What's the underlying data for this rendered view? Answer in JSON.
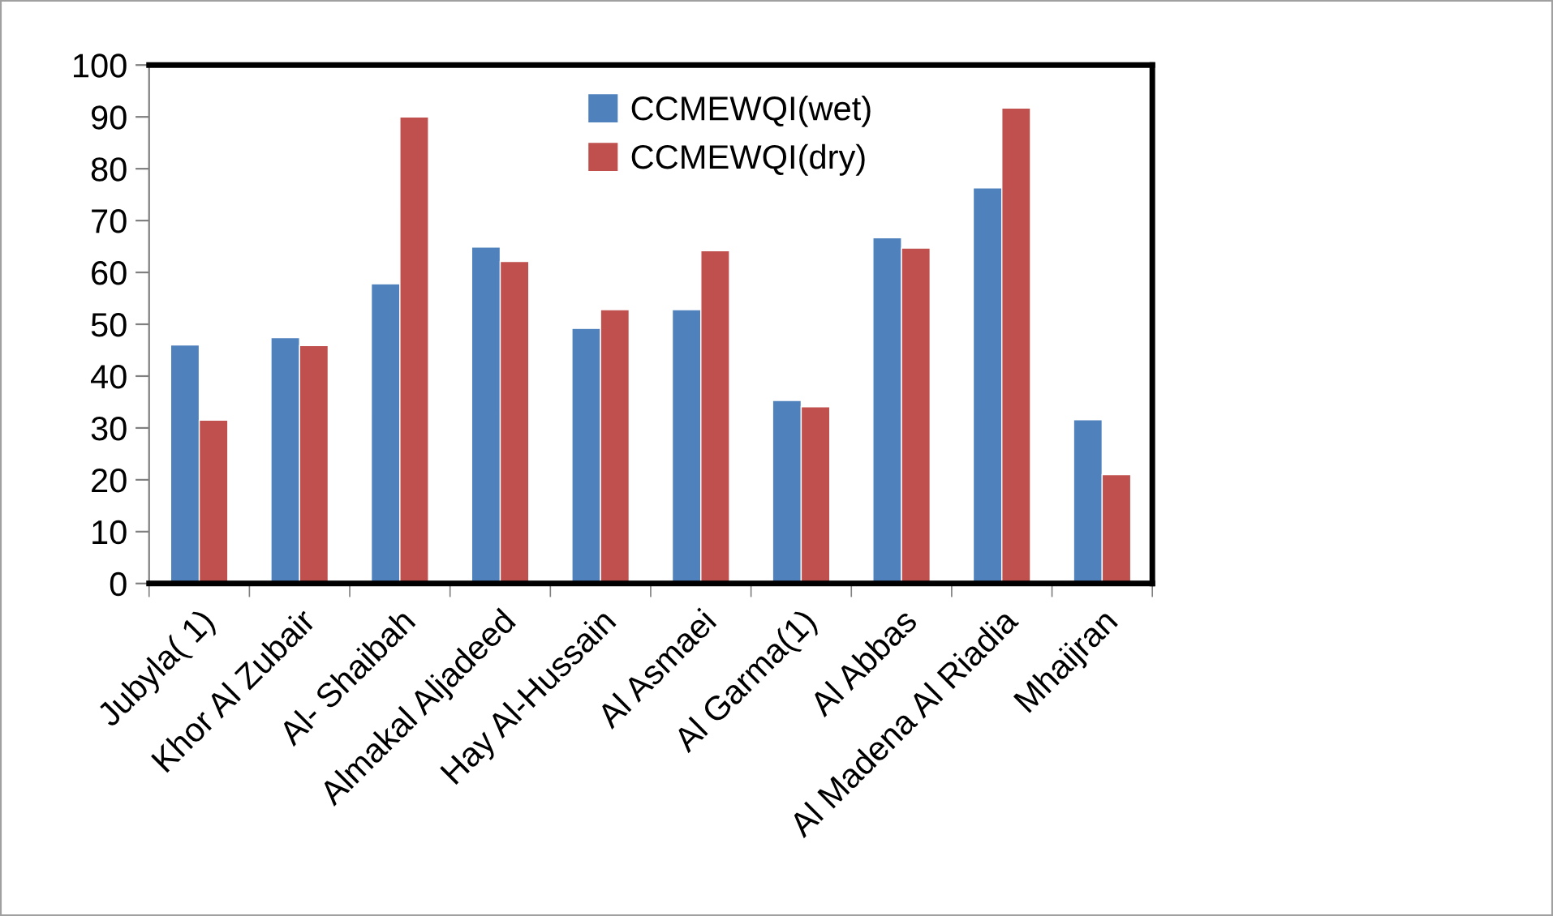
{
  "chart_data": {
    "type": "bar",
    "categories": [
      "Jubyla( 1)",
      "Khor Al Zubair",
      "Al- Shaibah",
      "Almakal Aljadeed",
      "Hay Al-Hussain",
      "Al Asmaei",
      "Al Garma(1)",
      "Al Abbas",
      "Al Madena Al Riadia",
      "Mhaijran"
    ],
    "series": [
      {
        "name": "CCMEWQI(wet)",
        "color": "#4f81bd",
        "values": [
          46,
          47.4,
          57.8,
          64.9,
          49.2,
          52.8,
          35.3,
          66.7,
          76.3,
          31.6
        ]
      },
      {
        "name": "CCMEWQI(dry)",
        "color": "#c0504d",
        "values": [
          31.5,
          45.9,
          90,
          62.1,
          52.8,
          64.2,
          34.1,
          64.7,
          91.7,
          21
        ]
      }
    ],
    "ylim": [
      0,
      100
    ],
    "yticks": [
      0,
      10,
      20,
      30,
      40,
      50,
      60,
      70,
      80,
      90,
      100
    ],
    "grid": false,
    "legend": "top"
  }
}
